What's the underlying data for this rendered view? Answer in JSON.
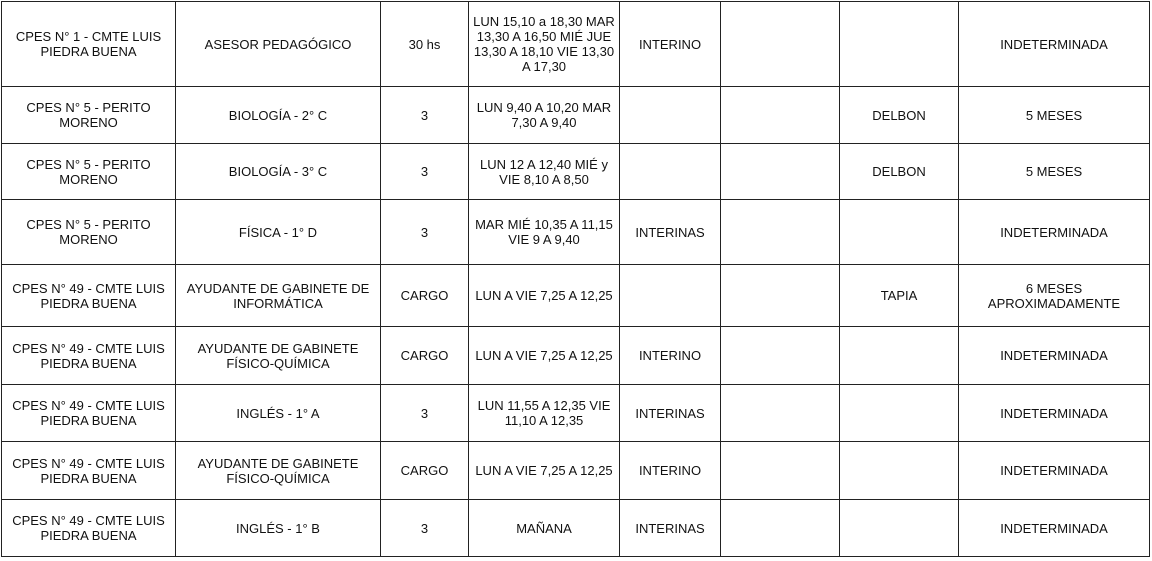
{
  "rows": [
    [
      "CPES N° 1 - CMTE LUIS PIEDRA BUENA",
      "ASESOR PEDAGÓGICO",
      "30 hs",
      "LUN 15,10 a 18,30 MAR 13,30 A 16,50 MIÉ JUE 13,30 A 18,10 VIE 13,30 A 17,30",
      "INTERINO",
      "",
      "",
      "INDETERMINADA"
    ],
    [
      "CPES N° 5 - PERITO MORENO",
      "BIOLOGÍA - 2° C",
      "3",
      "LUN 9,40 A 10,20 MAR 7,30 A 9,40",
      "",
      "",
      "DELBON",
      "5 MESES"
    ],
    [
      "CPES N° 5 - PERITO MORENO",
      "BIOLOGÍA - 3° C",
      "3",
      "LUN 12 A 12,40 MIÉ y VIE 8,10 A 8,50",
      "",
      "",
      "DELBON",
      "5 MESES"
    ],
    [
      "CPES N° 5 - PERITO MORENO",
      "FÍSICA - 1° D",
      "3",
      "MAR MIÉ 10,35 A 11,15 VIE 9 A 9,40",
      "INTERINAS",
      "",
      "",
      "INDETERMINADA"
    ],
    [
      "CPES N° 49 - CMTE LUIS PIEDRA BUENA",
      "AYUDANTE DE GABINETE DE INFORMÁTICA",
      "CARGO",
      "LUN A VIE 7,25 A 12,25",
      "",
      "",
      "TAPIA",
      "6 MESES APROXIMADAMENTE"
    ],
    [
      "CPES N° 49 - CMTE LUIS PIEDRA BUENA",
      "AYUDANTE DE GABINETE FÍSICO-QUÍMICA",
      "CARGO",
      "LUN A VIE 7,25 A 12,25",
      "INTERINO",
      "",
      "",
      "INDETERMINADA"
    ],
    [
      "CPES N° 49 - CMTE LUIS PIEDRA BUENA",
      "INGLÉS - 1° A",
      "3",
      "LUN 11,55 A 12,35 VIE 11,10 A  12,35",
      "INTERINAS",
      "",
      "",
      "INDETERMINADA"
    ],
    [
      "CPES N° 49 - CMTE LUIS PIEDRA BUENA",
      "AYUDANTE DE GABINETE FÍSICO-QUÍMICA",
      "CARGO",
      "LUN A VIE 7,25 A 12,25",
      "INTERINO",
      "",
      "",
      "INDETERMINADA"
    ],
    [
      "CPES N° 49 - CMTE LUIS PIEDRA BUENA",
      "INGLÉS - 1° B",
      "3",
      "MAÑANA",
      "INTERINAS",
      "",
      "",
      "INDETERMINADA"
    ]
  ]
}
